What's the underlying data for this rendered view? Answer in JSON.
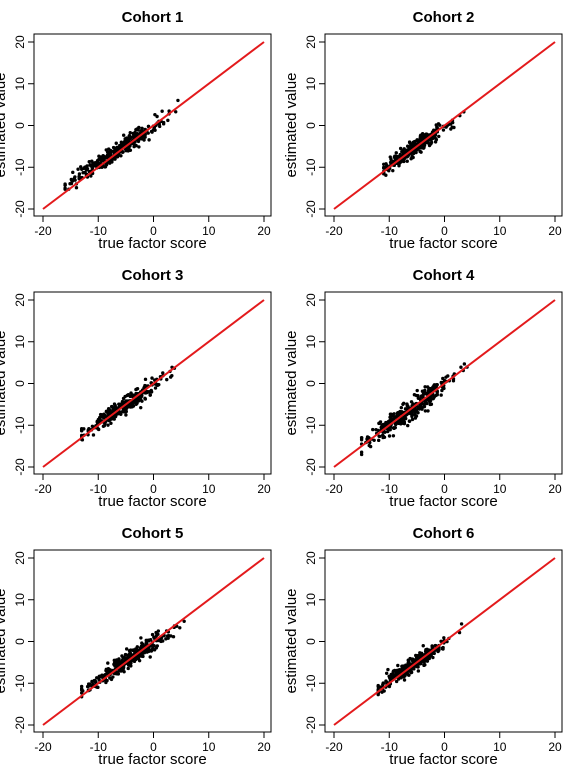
{
  "chart_data": [
    {
      "type": "scatter",
      "title": "Cohort 1",
      "xlabel": "true factor score",
      "ylabel": "estimated value",
      "xlim": [
        -20,
        20
      ],
      "ylim": [
        -20,
        20
      ],
      "xticks": [
        -20,
        -10,
        0,
        10,
        20
      ],
      "yticks": [
        -20,
        -10,
        0,
        10,
        20
      ],
      "reference_line": {
        "from": [
          -20,
          -20
        ],
        "to": [
          20,
          20
        ],
        "color": "#e31a1c"
      },
      "x_range": [
        -16,
        5.5
      ],
      "slope": 0.88,
      "intercept": -0.3,
      "noise": 1.0,
      "n_points": 320,
      "point_color": "#000000"
    },
    {
      "type": "scatter",
      "title": "Cohort 2",
      "xlabel": "true factor score",
      "ylabel": "estimated value",
      "xlim": [
        -20,
        20
      ],
      "ylim": [
        -20,
        20
      ],
      "xticks": [
        -20,
        -10,
        0,
        10,
        20
      ],
      "yticks": [
        -20,
        -10,
        0,
        10,
        20
      ],
      "reference_line": {
        "from": [
          -20,
          -20
        ],
        "to": [
          20,
          20
        ],
        "color": "#e31a1c"
      },
      "x_range": [
        -11,
        3.5
      ],
      "slope": 0.9,
      "intercept": -0.4,
      "noise": 0.9,
      "n_points": 320,
      "point_color": "#000000"
    },
    {
      "type": "scatter",
      "title": "Cohort 3",
      "xlabel": "true factor score",
      "ylabel": "estimated value",
      "xlim": [
        -20,
        20
      ],
      "ylim": [
        -20,
        20
      ],
      "xticks": [
        -20,
        -10,
        0,
        10,
        20
      ],
      "yticks": [
        -20,
        -10,
        0,
        10,
        20
      ],
      "reference_line": {
        "from": [
          -20,
          -20
        ],
        "to": [
          20,
          20
        ],
        "color": "#e31a1c"
      },
      "x_range": [
        -13,
        5
      ],
      "slope": 0.9,
      "intercept": -0.5,
      "noise": 0.95,
      "n_points": 320,
      "point_color": "#000000"
    },
    {
      "type": "scatter",
      "title": "Cohort 4",
      "xlabel": "true factor score",
      "ylabel": "estimated value",
      "xlim": [
        -20,
        20
      ],
      "ylim": [
        -20,
        20
      ],
      "xticks": [
        -20,
        -10,
        0,
        10,
        20
      ],
      "yticks": [
        -20,
        -10,
        0,
        10,
        20
      ],
      "reference_line": {
        "from": [
          -20,
          -20
        ],
        "to": [
          20,
          20
        ],
        "color": "#e31a1c"
      },
      "x_range": [
        -15,
        5.5
      ],
      "slope": 0.95,
      "intercept": -0.3,
      "noise": 1.3,
      "n_points": 320,
      "point_color": "#000000"
    },
    {
      "type": "scatter",
      "title": "Cohort 5",
      "xlabel": "true factor score",
      "ylabel": "estimated value",
      "xlim": [
        -20,
        20
      ],
      "ylim": [
        -20,
        20
      ],
      "xticks": [
        -20,
        -10,
        0,
        10,
        20
      ],
      "yticks": [
        -20,
        -10,
        0,
        10,
        20
      ],
      "reference_line": {
        "from": [
          -20,
          -20
        ],
        "to": [
          20,
          20
        ],
        "color": "#e31a1c"
      },
      "x_range": [
        -13,
        7
      ],
      "slope": 0.88,
      "intercept": -0.4,
      "noise": 1.0,
      "n_points": 320,
      "point_color": "#000000"
    },
    {
      "type": "scatter",
      "title": "Cohort 6",
      "xlabel": "true factor score",
      "ylabel": "estimated value",
      "xlim": [
        -20,
        20
      ],
      "ylim": [
        -20,
        20
      ],
      "xticks": [
        -20,
        -10,
        0,
        10,
        20
      ],
      "yticks": [
        -20,
        -10,
        0,
        10,
        20
      ],
      "reference_line": {
        "from": [
          -20,
          -20
        ],
        "to": [
          20,
          20
        ],
        "color": "#e31a1c"
      },
      "x_range": [
        -12,
        3.5
      ],
      "slope": 0.9,
      "intercept": -0.4,
      "noise": 0.85,
      "n_points": 320,
      "point_color": "#000000"
    }
  ]
}
